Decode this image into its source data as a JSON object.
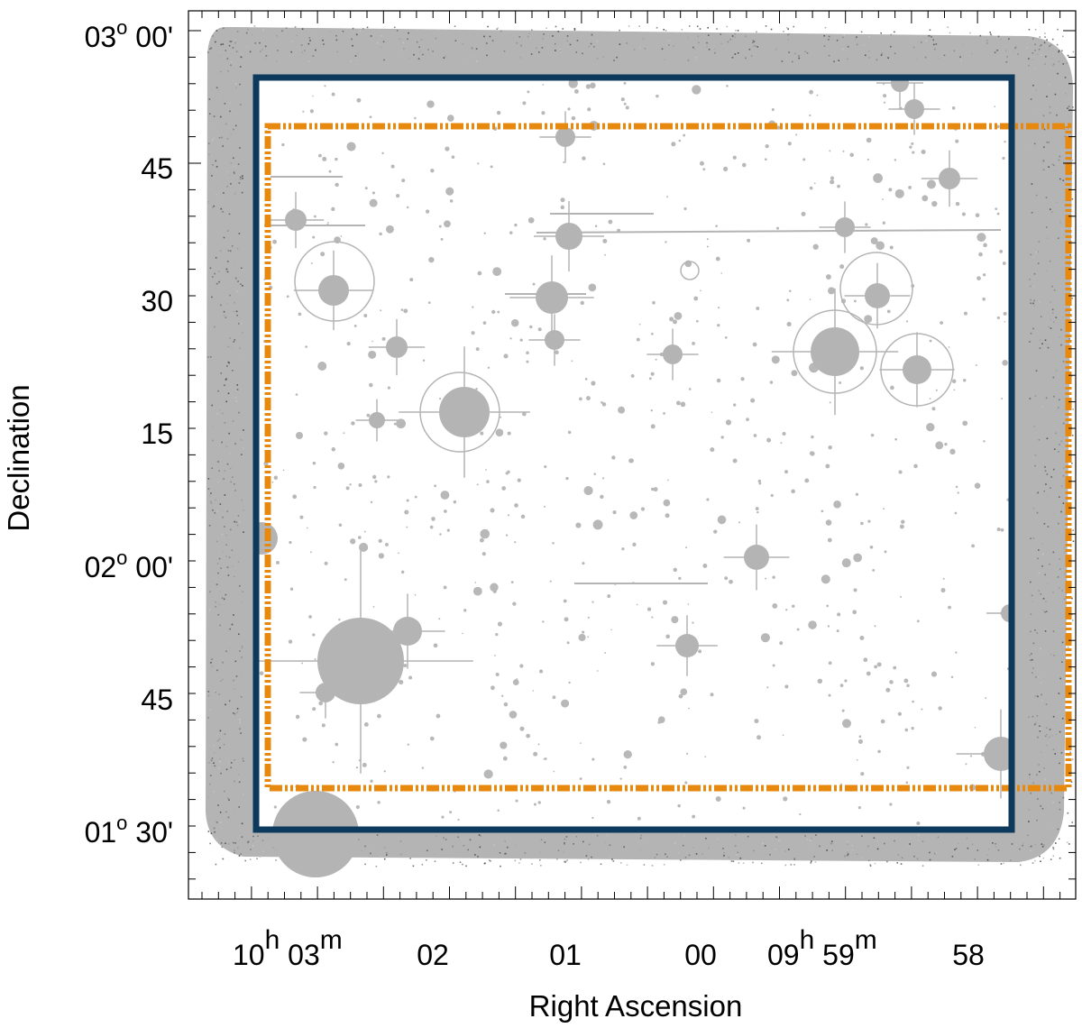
{
  "axes": {
    "x_title": "Right Ascension",
    "y_title": "Declination"
  },
  "y_ticks": [
    {
      "deg": "03",
      "sup": "o",
      "min": "00'"
    },
    {
      "deg": "",
      "sup": "",
      "min": "45"
    },
    {
      "deg": "",
      "sup": "",
      "min": "30"
    },
    {
      "deg": "",
      "sup": "",
      "min": "15"
    },
    {
      "deg": "02",
      "sup": "o",
      "min": "00'"
    },
    {
      "deg": "",
      "sup": "",
      "min": "45"
    },
    {
      "deg": "01",
      "sup": "o",
      "min": "30'"
    }
  ],
  "x_ticks": [
    {
      "h": "10",
      "hs": "h",
      "m": "03",
      "ms": "m"
    },
    {
      "h": "",
      "hs": "",
      "m": "02",
      "ms": ""
    },
    {
      "h": "",
      "hs": "",
      "m": "01",
      "ms": ""
    },
    {
      "h": "",
      "hs": "",
      "m": "00",
      "ms": ""
    },
    {
      "h": "09",
      "hs": "h",
      "m": "59",
      "ms": "m"
    },
    {
      "h": "",
      "hs": "",
      "m": "58",
      "ms": ""
    }
  ],
  "overlays": {
    "solid_box_color": "#0d3a5c",
    "dashed_box_color": "#e8890f",
    "solid_box_extent": {
      "ra": [
        "10h03m14s",
        "09h57m38s"
      ],
      "dec": [
        "+02d55m",
        "+01d30m"
      ]
    },
    "dashed_box_extent": {
      "ra": [
        "10h03m08s",
        "09h57m14s"
      ],
      "dec": [
        "+02d49m",
        "+01d35m"
      ]
    }
  },
  "image": {
    "background_color": "#b4b4b4",
    "field_color": "#ffffff",
    "source_color": "#b2b2b2"
  }
}
